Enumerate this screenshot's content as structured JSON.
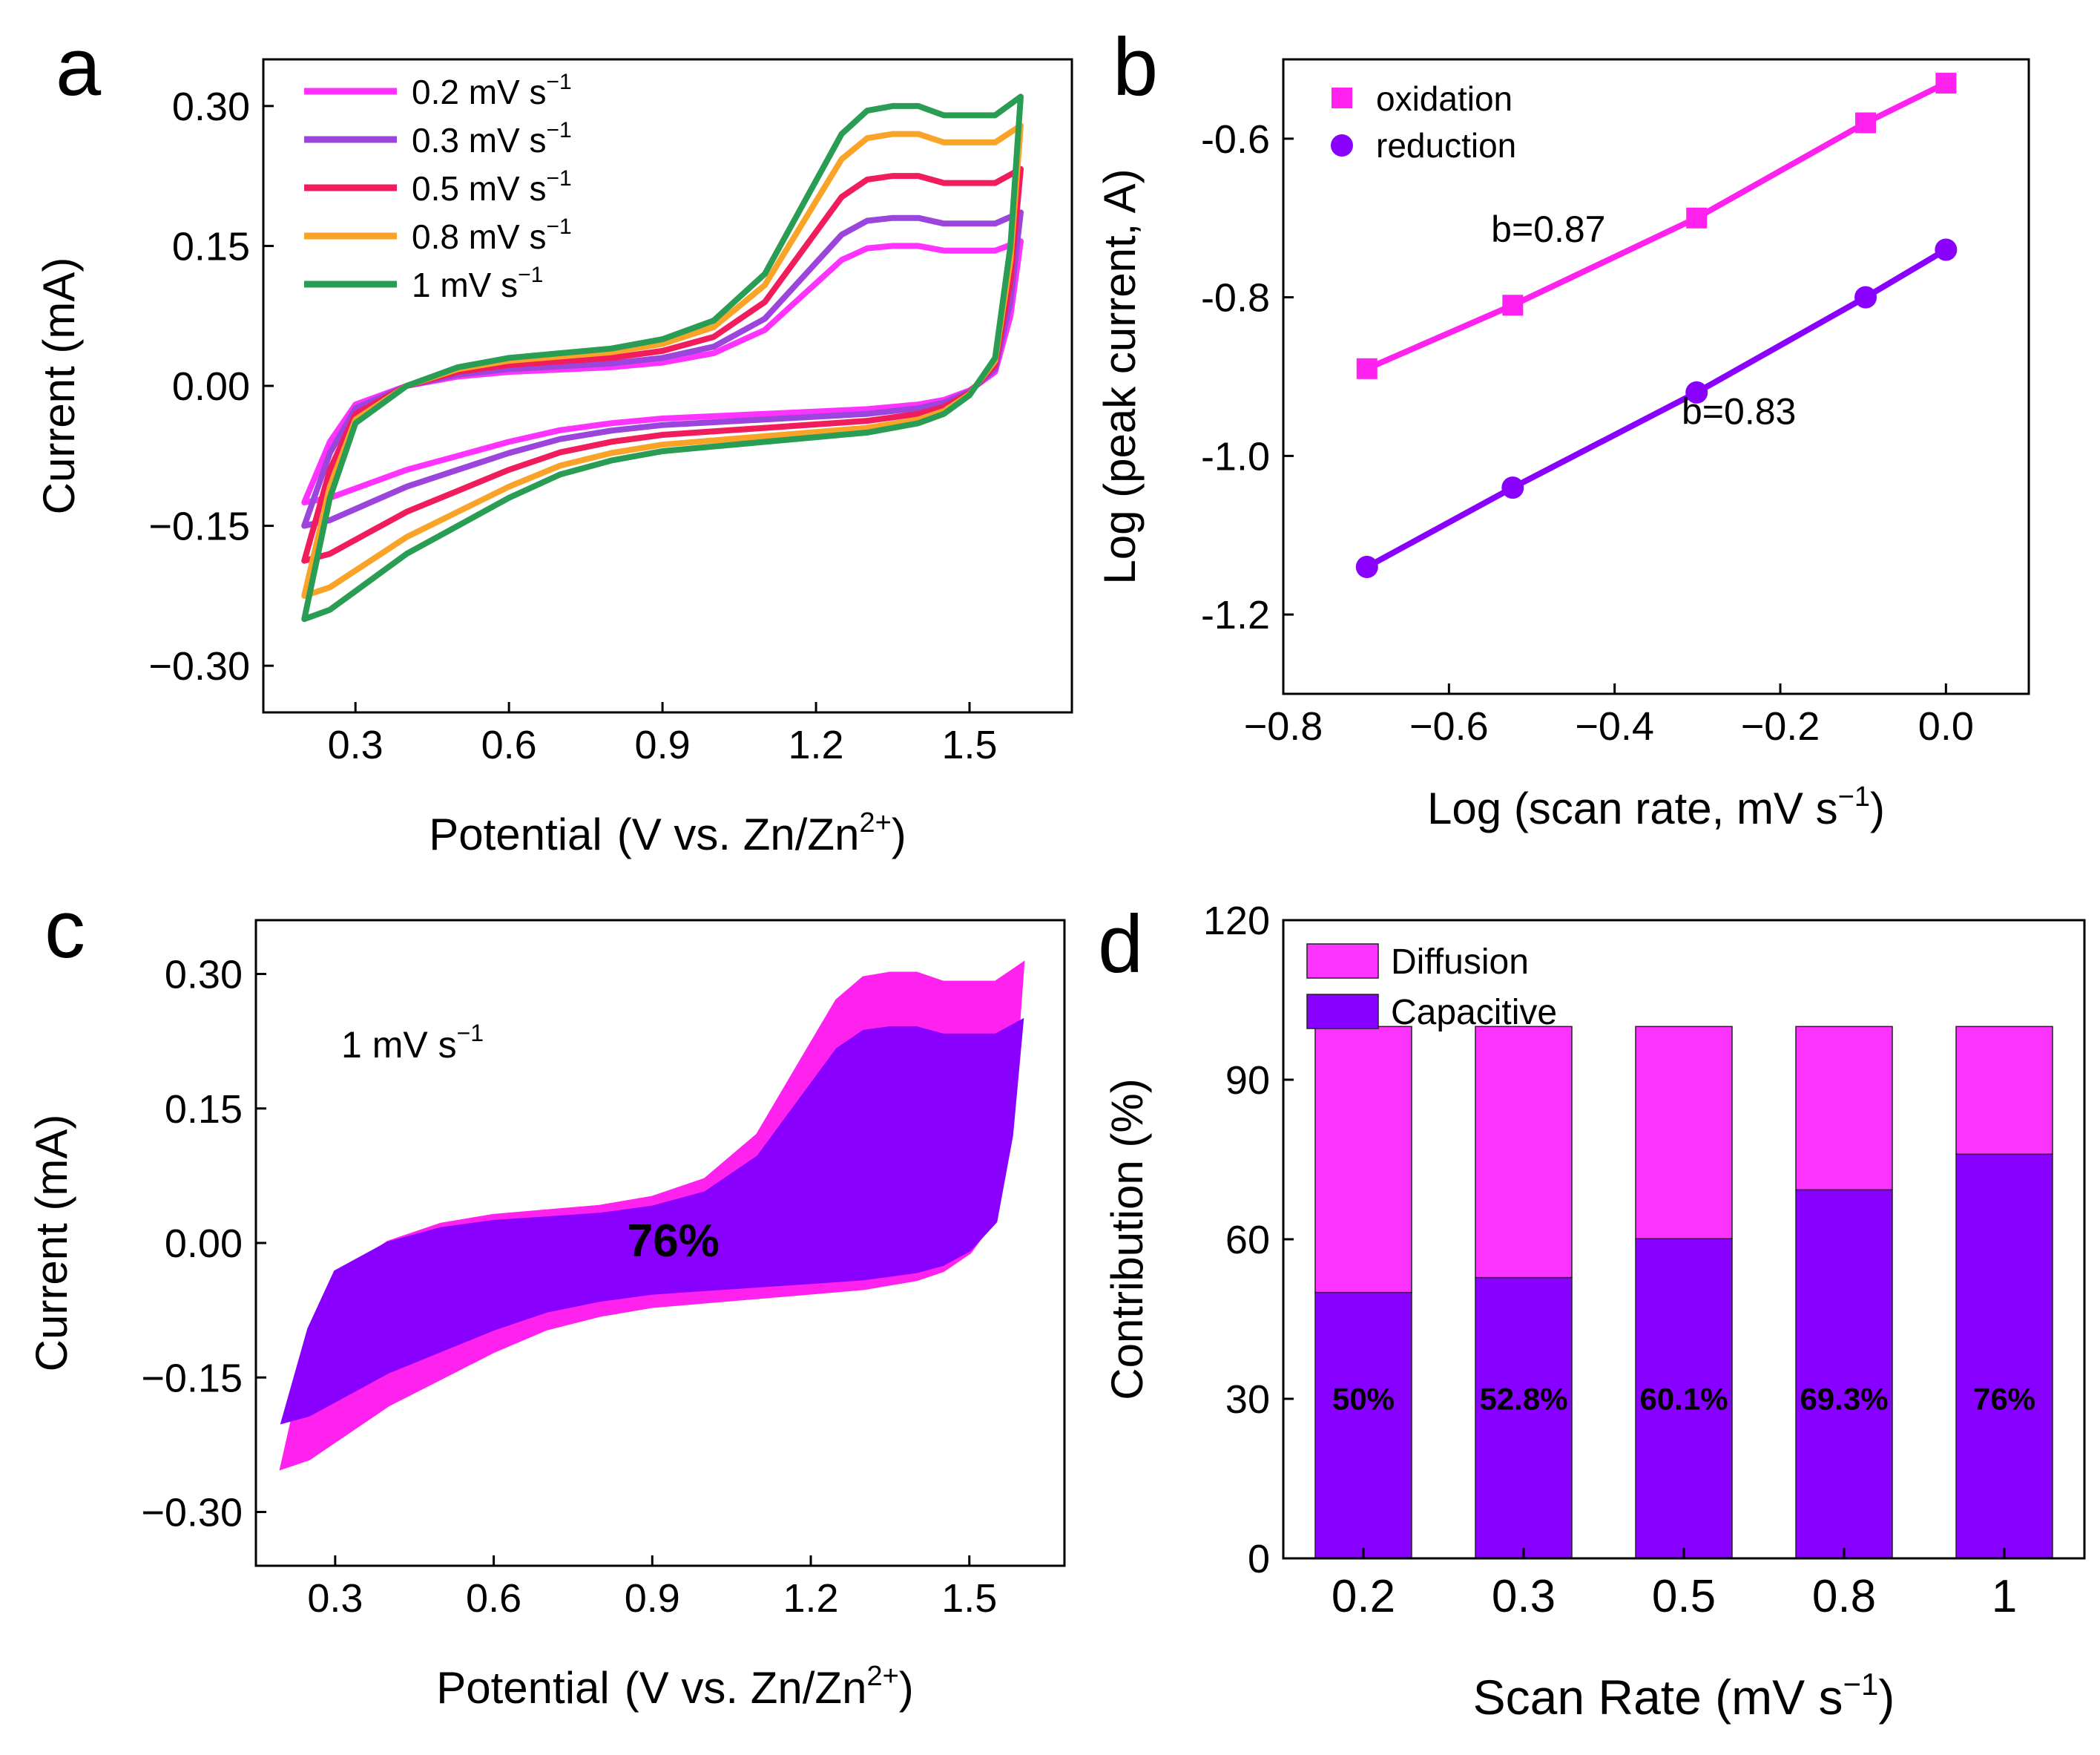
{
  "colors": {
    "pink": "#ff33ff",
    "violet": "#8800ff",
    "purple": "#9b45dc",
    "red": "#f01c5c",
    "orange": "#f9a428",
    "green": "#2a9d54",
    "magenta": "#ff22ee",
    "violet_fill": "#8a00ff",
    "axis": "#000000"
  },
  "chart_data": [
    {
      "panel": "a",
      "type": "line",
      "xlabel_main": "Potential",
      "xlabel_rest": "(V vs. Zn/Zn",
      "xlabel_sup": "2+",
      "xlabel_close": ")",
      "ylabel": "Current (mA)",
      "xlim": [
        0.12,
        1.7
      ],
      "ylim": [
        -0.35,
        0.35
      ],
      "xticks": [
        0.3,
        0.6,
        0.9,
        1.2,
        1.5
      ],
      "xtick_labels": [
        "0.3",
        "0.6",
        "0.9",
        "1.2",
        "1.5"
      ],
      "yticks": [
        0.3,
        0.15,
        0.0,
        -0.15,
        -0.3
      ],
      "ytick_labels": [
        "0.30",
        "0.15",
        "0.00",
        "−0.15",
        "−0.30"
      ],
      "legend_location": "top-left",
      "series": [
        {
          "name": "0.2 mV s",
          "sup": "−1",
          "scale": 0.5,
          "color_key": "pink"
        },
        {
          "name": "0.3 mV s",
          "sup": "−1",
          "scale": 0.6,
          "color_key": "purple"
        },
        {
          "name": "0.5 mV s",
          "sup": "−1",
          "scale": 0.75,
          "color_key": "red"
        },
        {
          "name": "0.8 mV s",
          "sup": "−1",
          "scale": 0.9,
          "color_key": "orange"
        },
        {
          "name": "1 mV s",
          "sup": "−1",
          "scale": 1.0,
          "color_key": "green"
        }
      ],
      "anodic_sweep_1mV": [
        [
          0.2,
          -0.25
        ],
        [
          0.25,
          -0.12
        ],
        [
          0.3,
          -0.04
        ],
        [
          0.4,
          0.0
        ],
        [
          0.5,
          0.02
        ],
        [
          0.6,
          0.03
        ],
        [
          0.7,
          0.035
        ],
        [
          0.8,
          0.04
        ],
        [
          0.9,
          0.05
        ],
        [
          1.0,
          0.07
        ],
        [
          1.1,
          0.12
        ],
        [
          1.2,
          0.22
        ],
        [
          1.25,
          0.27
        ],
        [
          1.3,
          0.295
        ],
        [
          1.35,
          0.3
        ],
        [
          1.4,
          0.3
        ],
        [
          1.45,
          0.29
        ],
        [
          1.5,
          0.29
        ],
        [
          1.55,
          0.29
        ],
        [
          1.6,
          0.31
        ]
      ],
      "cathodic_sweep_1mV": [
        [
          1.6,
          0.31
        ],
        [
          1.58,
          0.15
        ],
        [
          1.55,
          0.03
        ],
        [
          1.5,
          -0.01
        ],
        [
          1.45,
          -0.03
        ],
        [
          1.4,
          -0.04
        ],
        [
          1.3,
          -0.05
        ],
        [
          1.2,
          -0.055
        ],
        [
          1.1,
          -0.06
        ],
        [
          1.0,
          -0.065
        ],
        [
          0.9,
          -0.07
        ],
        [
          0.8,
          -0.08
        ],
        [
          0.7,
          -0.095
        ],
        [
          0.6,
          -0.12
        ],
        [
          0.5,
          -0.15
        ],
        [
          0.4,
          -0.18
        ],
        [
          0.3,
          -0.22
        ],
        [
          0.25,
          -0.24
        ],
        [
          0.2,
          -0.25
        ]
      ]
    },
    {
      "panel": "b",
      "type": "scatter",
      "xlabel": "Log (scan rate, mV s",
      "xlabel_sup": "−1",
      "xlabel_close": ")",
      "ylabel": "Log (peak current, A)",
      "xlim": [
        -0.8,
        0.1
      ],
      "ylim": [
        -1.3,
        -0.5
      ],
      "xticks": [
        -0.8,
        -0.6,
        -0.4,
        -0.2,
        0.0
      ],
      "xtick_labels": [
        "−0.8",
        "−0.6",
        "−0.4",
        "−0.2",
        "0.0"
      ],
      "yticks": [
        -0.6,
        -0.8,
        -1.0,
        -1.2
      ],
      "ytick_labels": [
        "-0.6",
        "-0.8",
        "-1.0",
        "-1.2"
      ],
      "legend_location": "top-left",
      "series": [
        {
          "name": "oxidation",
          "marker": "square",
          "color_key": "magenta",
          "x": [
            -0.699,
            -0.523,
            -0.301,
            -0.097,
            0.0
          ],
          "y": [
            -0.89,
            -0.81,
            -0.7,
            -0.58,
            -0.53
          ]
        },
        {
          "name": "reduction",
          "marker": "circle",
          "color_key": "violet_fill",
          "x": [
            -0.699,
            -0.523,
            -0.301,
            -0.097,
            0.0
          ],
          "y": [
            -1.14,
            -1.04,
            -0.92,
            -0.8,
            -0.74
          ]
        }
      ],
      "annotations": [
        {
          "text": "b=0.87",
          "x": -0.48,
          "y": -0.73
        },
        {
          "text": "b=0.83",
          "x": -0.25,
          "y": -0.96
        }
      ]
    },
    {
      "panel": "c",
      "type": "area",
      "xlabel_main": "Potential",
      "xlabel_rest": "(V vs. Zn/Zn",
      "xlabel_sup": "2+",
      "xlabel_close": ")",
      "ylabel": "Current (mA)",
      "xlim": [
        0.15,
        1.68
      ],
      "ylim": [
        -0.36,
        0.36
      ],
      "xticks": [
        0.3,
        0.6,
        0.9,
        1.2,
        1.5
      ],
      "xtick_labels": [
        "0.3",
        "0.6",
        "0.9",
        "1.2",
        "1.5"
      ],
      "yticks": [
        0.3,
        0.15,
        0.0,
        -0.15,
        -0.3
      ],
      "ytick_labels": [
        "0.30",
        "0.15",
        "0.00",
        "−0.15",
        "−0.30"
      ],
      "scan_label": "1 mV s",
      "scan_label_sup": "−1",
      "capacitive_label": "76%",
      "capacitive_scale": 0.8
    },
    {
      "panel": "d",
      "type": "bar",
      "xlabel": "Scan Rate (mV s",
      "xlabel_sup": "−1",
      "xlabel_close": ")",
      "ylabel": "Contribution (%)",
      "ylim": [
        0,
        120
      ],
      "yticks": [
        0,
        30,
        60,
        90,
        120
      ],
      "ytick_labels": [
        "0",
        "30",
        "60",
        "90",
        "120"
      ],
      "categories": [
        "0.2",
        "0.3",
        "0.5",
        "0.8",
        "1"
      ],
      "legend_location": "top-left",
      "series": [
        {
          "name": "Capacitive",
          "color_key": "violet",
          "values": [
            50,
            52.8,
            60.1,
            69.3,
            76
          ]
        },
        {
          "name": "Diffusion",
          "color_key": "pink",
          "values": [
            50,
            47.2,
            39.9,
            30.7,
            24
          ]
        }
      ],
      "bar_labels": [
        "50%",
        "52.8%",
        "60.1%",
        "69.3%",
        "76%"
      ],
      "label_value": 28
    }
  ],
  "panel_letters": [
    "a",
    "b",
    "c",
    "d"
  ]
}
